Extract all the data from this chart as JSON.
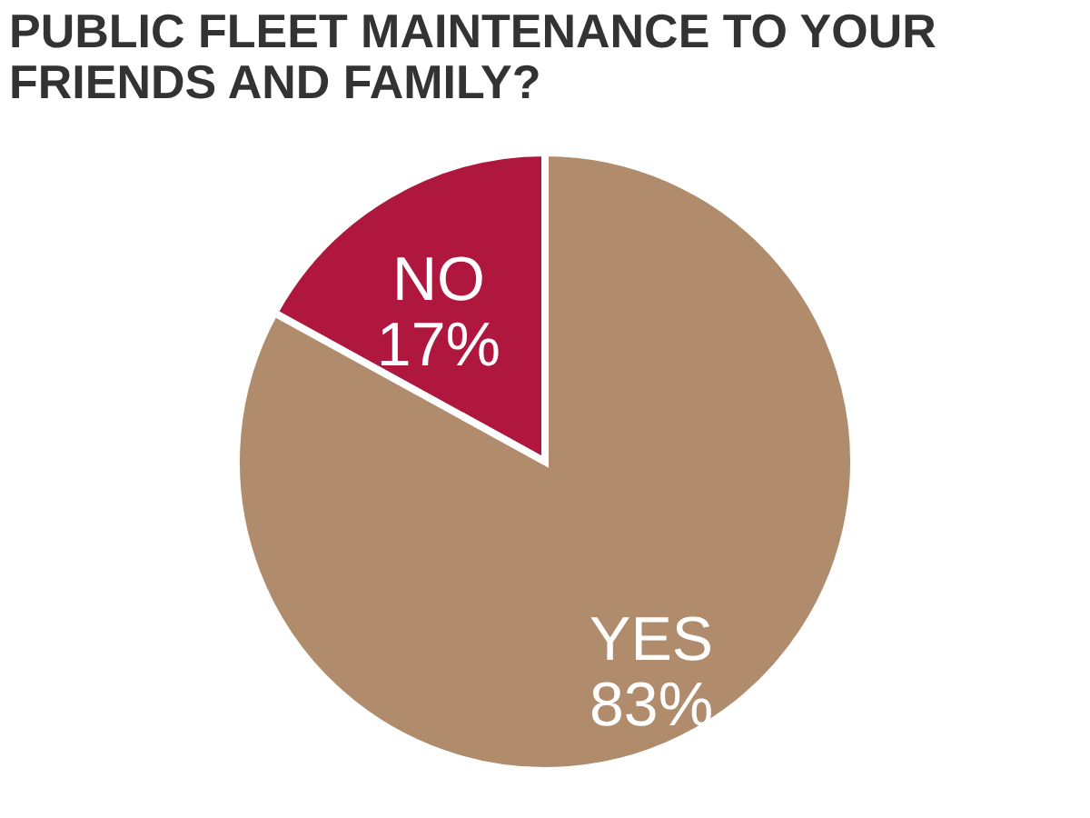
{
  "chart_data": {
    "type": "pie",
    "title": "PUBLIC FLEET MAINTENANCE TO YOUR FRIENDS AND FAMILY?",
    "categories": [
      "NO",
      "YES"
    ],
    "values": [
      17,
      83
    ],
    "colors": [
      "#b0173f",
      "#b08c6c"
    ],
    "value_labels": [
      "17%",
      "83%"
    ],
    "legend": false
  }
}
